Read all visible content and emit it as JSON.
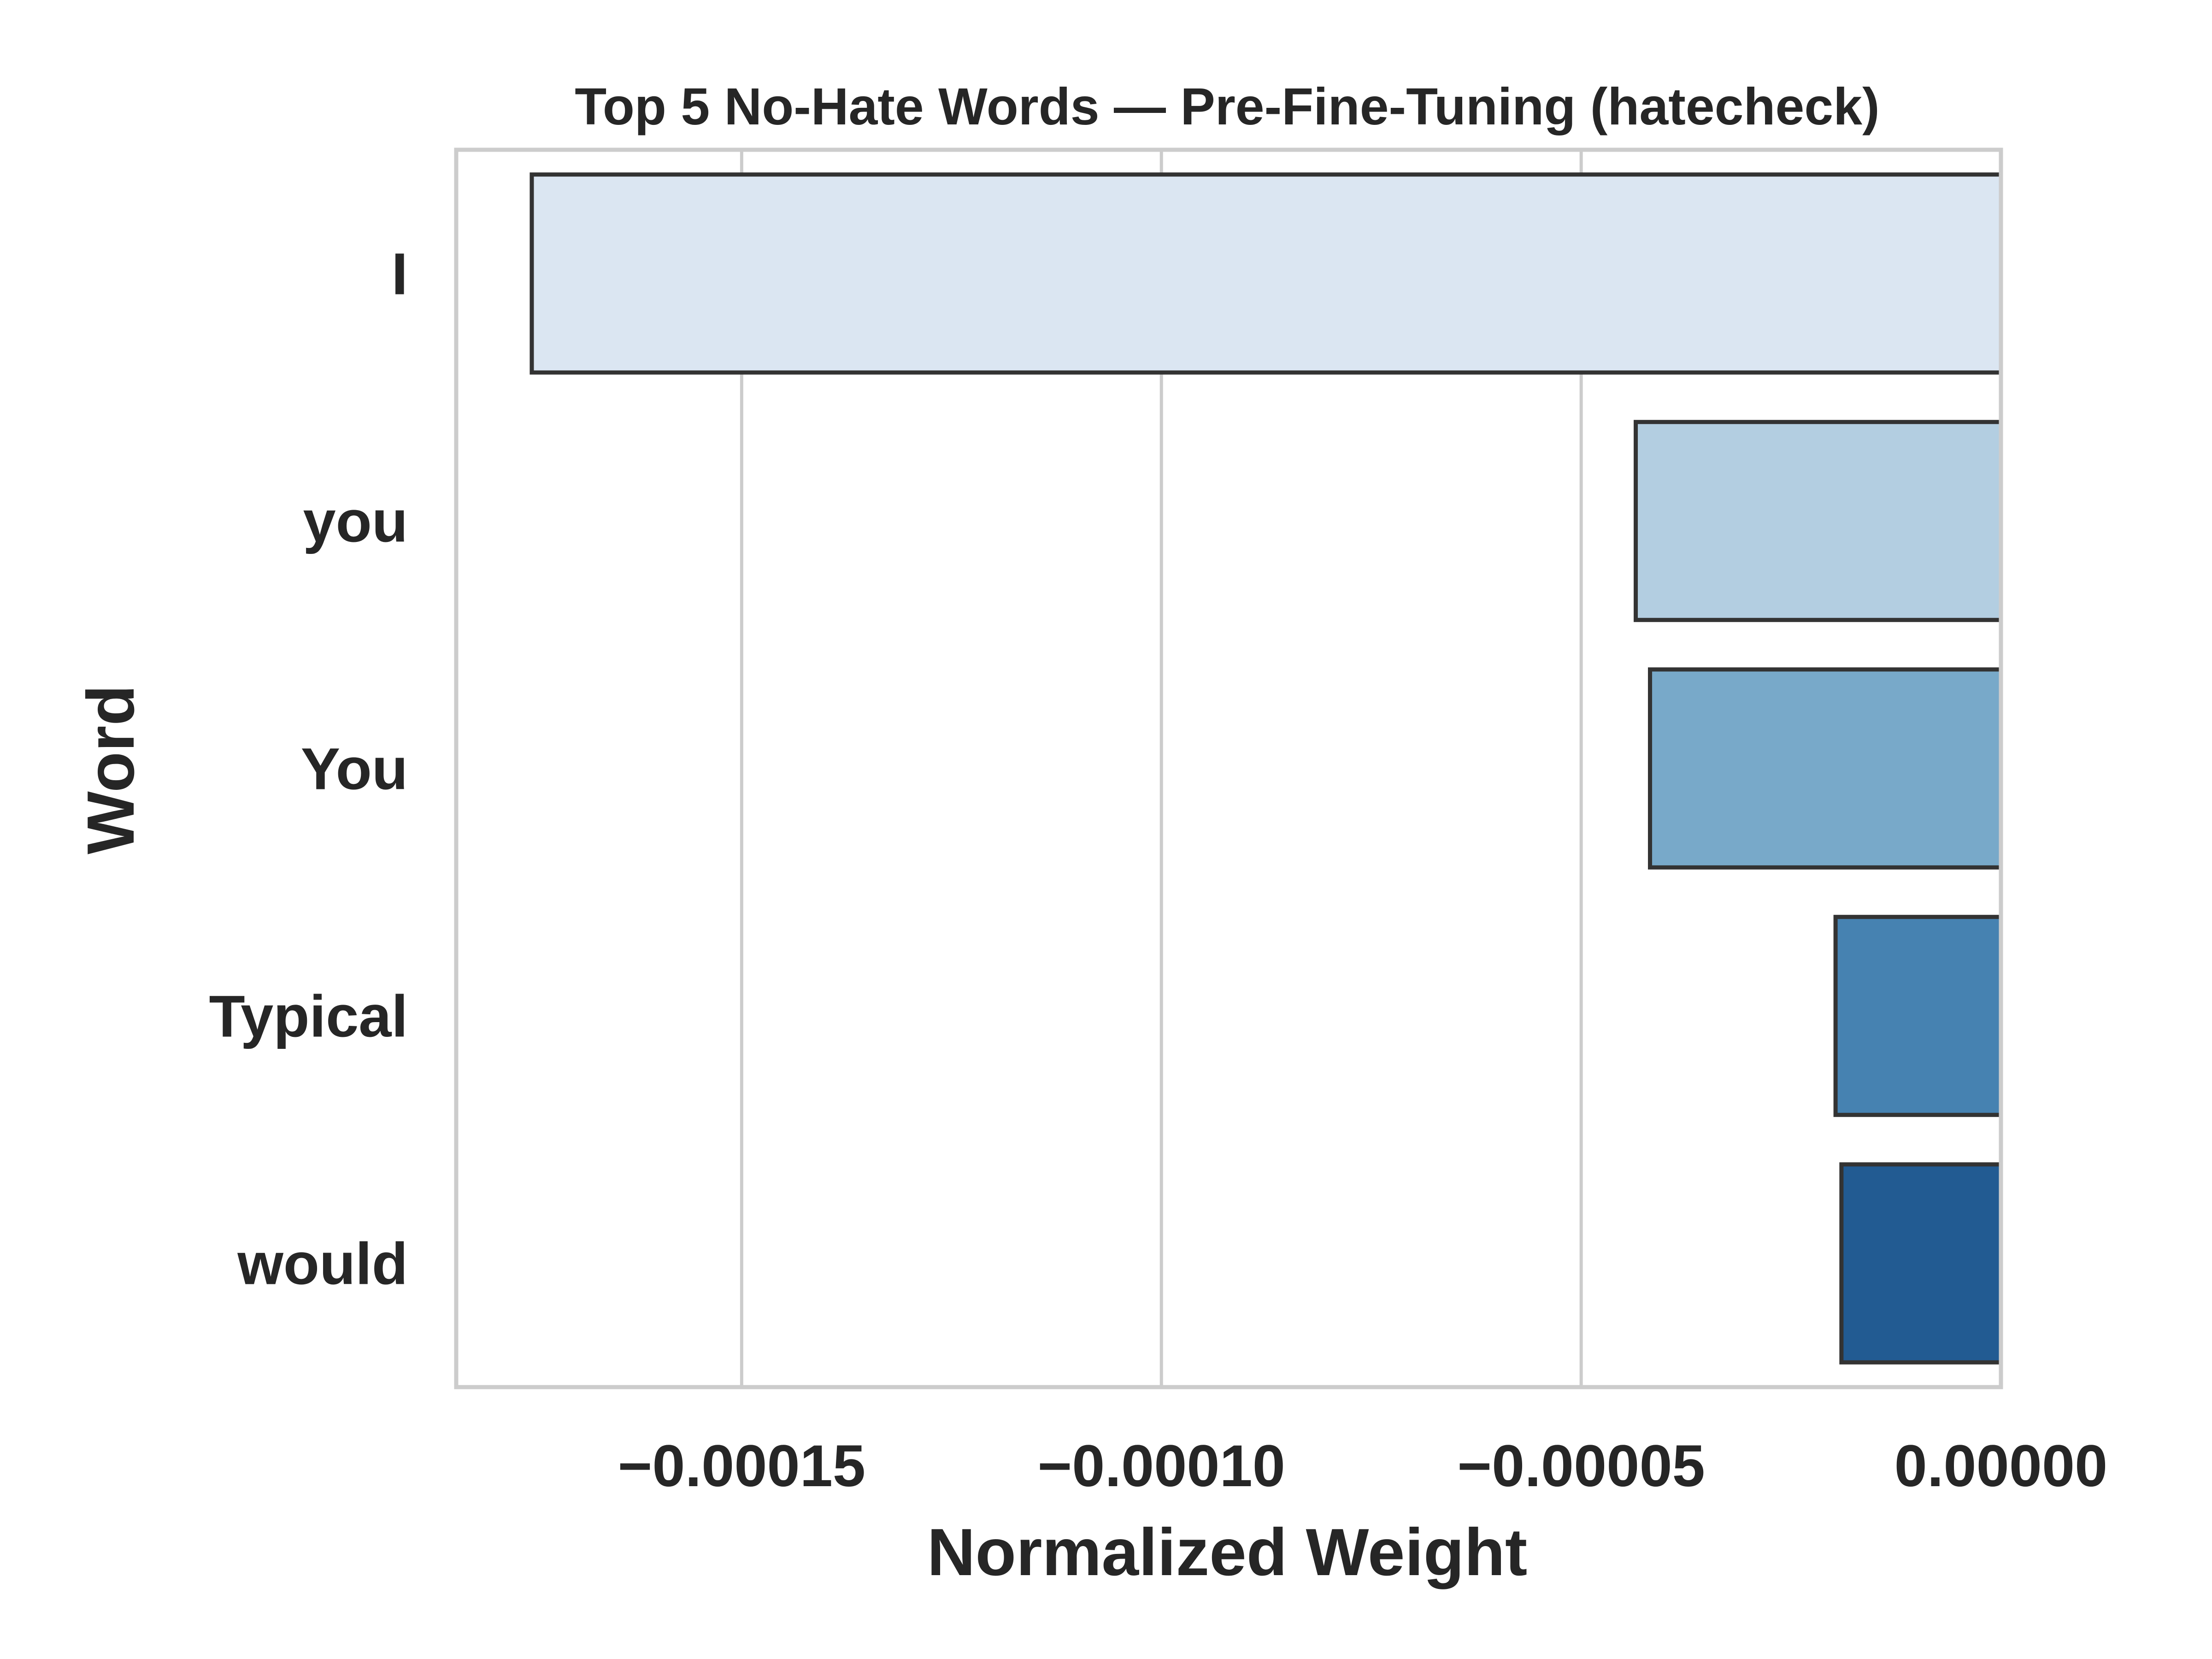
{
  "chart_data": {
    "type": "bar",
    "orientation": "horizontal",
    "title": "Top 5 No-Hate Words — Pre-Fine-Tuning (hatecheck)",
    "xlabel": "Normalized Weight",
    "ylabel": "Word",
    "categories": [
      "I",
      "you",
      "You",
      "Typical",
      "would"
    ],
    "values": [
      -0.000175,
      -4.35e-05,
      -4.18e-05,
      -1.97e-05,
      -1.9e-05
    ],
    "colors": [
      "#dbe6f2",
      "#b3cee1",
      "#78a9c9",
      "#4682b1",
      "#225b92"
    ],
    "xlim": [
      -0.000184,
      0.0
    ],
    "xticks": [
      -0.00015,
      -0.0001,
      -5e-05,
      0.0
    ],
    "xtick_labels": [
      "−0.00015",
      "−0.00010",
      "−0.00005",
      "0.00000"
    ],
    "grid": "vertical",
    "legend": "none"
  }
}
